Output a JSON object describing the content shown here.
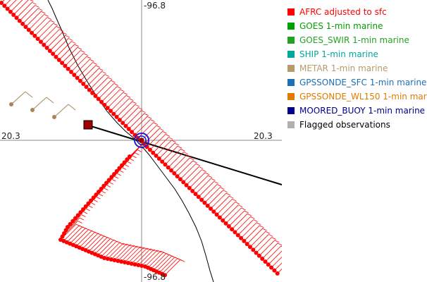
{
  "map": {
    "lon_label_top": "-96.8",
    "lon_label_bottom": "-96.8",
    "lat_label_left": "20.3",
    "lat_label_right": "20.3",
    "colors": {
      "barb": "#ff0000",
      "marker": "#ff0000",
      "track": "#000000",
      "coast": "#000000",
      "station_barb": "#a8865a",
      "station_dot": "#a8865a",
      "buoy": "#1a22cc",
      "buoy_center": "#8b0000",
      "square_marker": "#a00000",
      "crosshair": "#888888"
    }
  },
  "legend": {
    "items": [
      {
        "label": "AFRC adjusted to sfc",
        "color": "#ff0000"
      },
      {
        "label": "GOES 1-min marine",
        "color": "#009e00"
      },
      {
        "label": "GOES_SWIR 1-min marine",
        "color": "#23a123"
      },
      {
        "label": "SHIP 1-min marine",
        "color": "#00a6a0"
      },
      {
        "label": "METAR 1-min marine",
        "color": "#b59a6a"
      },
      {
        "label": "GPSSONDE_SFC 1-min marine",
        "color": "#1e6fb5"
      },
      {
        "label": "GPSSONDE_WL150 1-min mar",
        "color": "#e07b00"
      },
      {
        "label": "MOORED_BUOY 1-min marine",
        "color": "#00008b"
      },
      {
        "label": "Flagged observations",
        "color": "#b0b0b0"
      }
    ]
  }
}
